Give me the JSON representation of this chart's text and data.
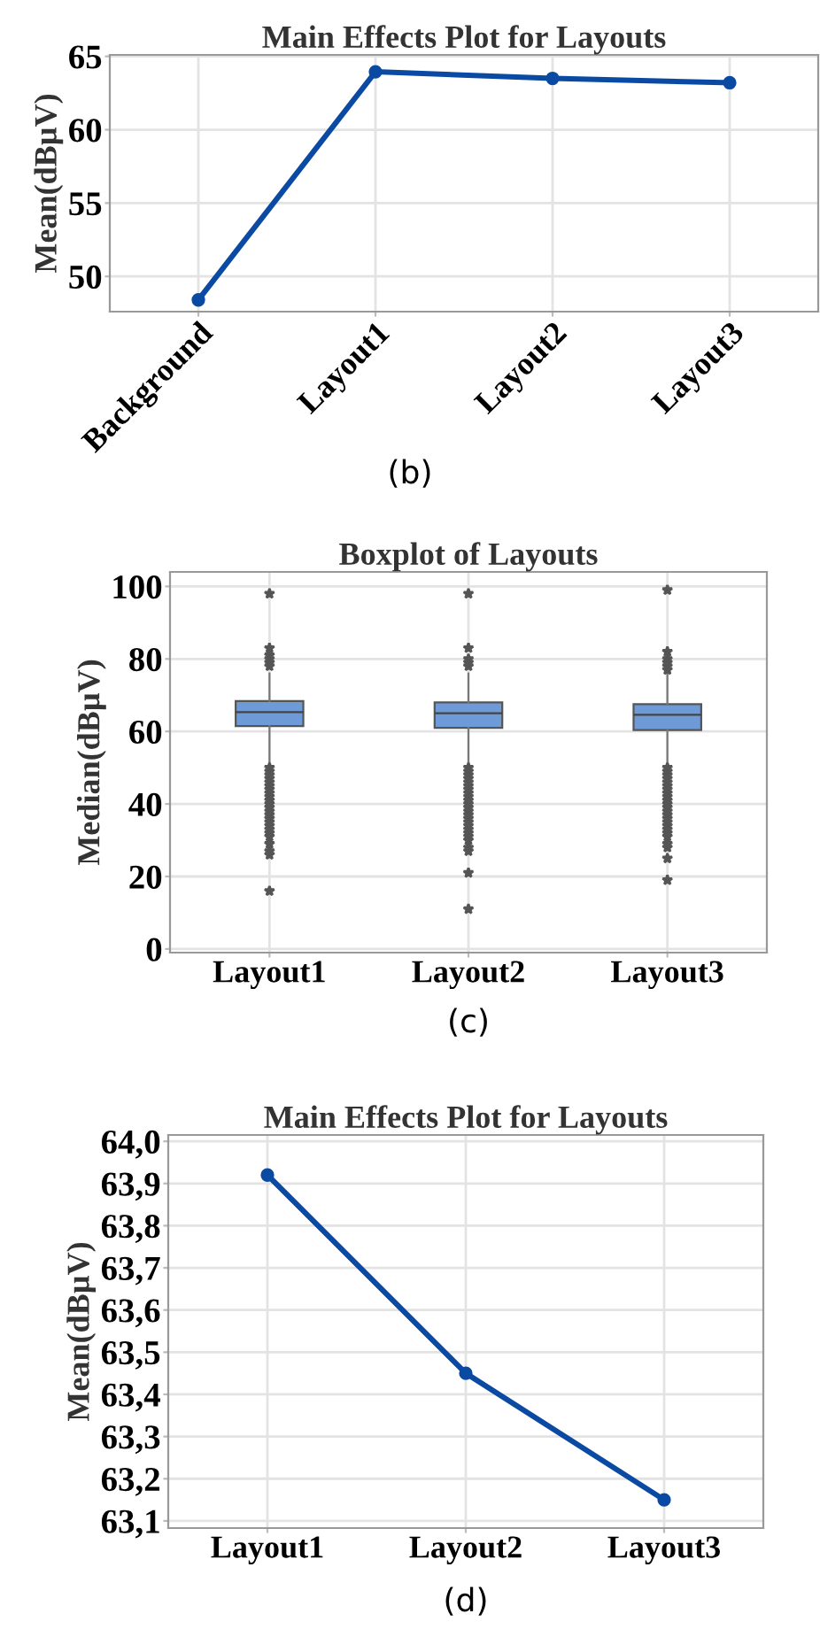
{
  "chart_data": [
    {
      "type": "line",
      "title": "Main Effects Plot for Layouts",
      "ylabel": "Mean(dBµV)",
      "categories": [
        "Background",
        "Layout1",
        "Layout2",
        "Layout3"
      ],
      "values": [
        48.4,
        63.95,
        63.5,
        63.2
      ],
      "color": "#0b4aa2",
      "marker": "circle",
      "ylim": [
        47.6,
        65.1
      ],
      "yticks": [
        50,
        55,
        60,
        65
      ],
      "grid": true,
      "annotations": [
        "(b)"
      ]
    },
    {
      "type": "box",
      "title": "Boxplot of Layouts",
      "ylabel": "Median(dBµV)",
      "categories": [
        "Layout1",
        "Layout2",
        "Layout3"
      ],
      "color": "#6f9ad8",
      "ylim": [
        -1,
        104
      ],
      "yticks": [
        0,
        20,
        40,
        60,
        80,
        100
      ],
      "grid": true,
      "annotations": [
        "(c)"
      ],
      "boxes": [
        {
          "low": 51,
          "q1": 61.5,
          "median": 65.3,
          "q3": 68.4,
          "high": 76,
          "outliers": [
            16,
            26,
            27,
            29,
            31,
            32,
            33,
            34,
            35,
            36,
            37,
            38,
            39,
            40,
            41,
            42,
            43,
            44,
            45,
            46,
            47,
            48,
            49,
            50,
            78,
            79,
            80,
            81,
            83,
            98
          ]
        },
        {
          "low": 51,
          "q1": 61,
          "median": 65,
          "q3": 68,
          "high": 76,
          "outliers": [
            11,
            21,
            27,
            28,
            30,
            31,
            32,
            33,
            34,
            35,
            36,
            37,
            38,
            39,
            40,
            41,
            42,
            43,
            44,
            45,
            46,
            47,
            48,
            49,
            50,
            78,
            79,
            80,
            83,
            98
          ]
        },
        {
          "low": 51,
          "q1": 60.4,
          "median": 64.6,
          "q3": 67.5,
          "high": 76,
          "outliers": [
            19,
            25,
            28,
            29,
            31,
            32,
            33,
            34,
            35,
            36,
            37,
            38,
            39,
            40,
            41,
            42,
            43,
            44,
            45,
            46,
            47,
            48,
            49,
            50,
            77,
            78,
            79,
            80,
            82,
            99
          ]
        }
      ]
    },
    {
      "type": "line",
      "title": "Main Effects Plot for Layouts",
      "ylabel": "Mean(dBµV)",
      "categories": [
        "Layout1",
        "Layout2",
        "Layout3"
      ],
      "values": [
        63.92,
        63.45,
        63.15
      ],
      "color": "#0b4aa2",
      "marker": "circle",
      "ylim": [
        63.083,
        64.015
      ],
      "yticks": [
        {
          "value": 63.1,
          "label": "63,1"
        },
        {
          "value": 63.2,
          "label": "63,2"
        },
        {
          "value": 63.3,
          "label": "63,3"
        },
        {
          "value": 63.4,
          "label": "63,4"
        },
        {
          "value": 63.5,
          "label": "63,5"
        },
        {
          "value": 63.6,
          "label": "63,6"
        },
        {
          "value": 63.7,
          "label": "63,7"
        },
        {
          "value": 63.8,
          "label": "63,8"
        },
        {
          "value": 63.9,
          "label": "63,9"
        },
        {
          "value": 64.0,
          "label": "64,0"
        }
      ],
      "grid": true,
      "annotations": [
        "(d)"
      ]
    }
  ]
}
